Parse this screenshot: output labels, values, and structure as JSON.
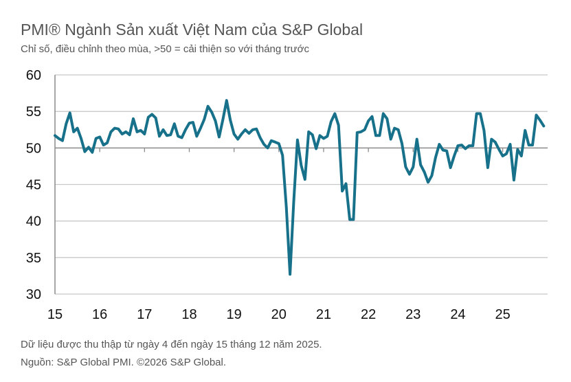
{
  "title": "PMI® Ngành Sản xuất Việt Nam của S&P Global",
  "subtitle": "Chỉ số, điều chỉnh theo mùa, >50 = cải thiện so với tháng trước",
  "footnote": "Dữ liệu được thu thập từ ngày 4 đến ngày 15 tháng 12 năm 2025.",
  "source": "Nguồn: S&P Global PMI. ©2026 S&P Global.",
  "chart_data": {
    "type": "line",
    "title": "PMI® Ngành Sản xuất Việt Nam của S&P Global",
    "xlabel": "",
    "ylabel": "",
    "ylim": [
      30,
      60
    ],
    "yticks": [
      "30",
      "35",
      "40",
      "45",
      "50",
      "55",
      "60"
    ],
    "xticks": [
      "15",
      "16",
      "17",
      "18",
      "19",
      "20",
      "21",
      "22",
      "23",
      "24",
      "25"
    ],
    "x_range": [
      "2015-01",
      "2025-12"
    ],
    "frequency": "monthly",
    "grid": true,
    "line_color": "#17718a",
    "series": [
      {
        "values": [
          51.7,
          51.3,
          51.0,
          53.3,
          54.8,
          52.2,
          52.7,
          51.3,
          49.5,
          50.1,
          49.4,
          51.3,
          51.5,
          50.4,
          50.7,
          52.2,
          52.7,
          52.6,
          51.9,
          52.2,
          51.8,
          54.0,
          52.2,
          52.4,
          51.9,
          54.2,
          54.6,
          54.1,
          51.6,
          52.5,
          51.7,
          51.8,
          53.3,
          51.6,
          51.4,
          52.5,
          53.4,
          53.5,
          51.6,
          52.7,
          53.9,
          55.7,
          54.9,
          53.7,
          51.5,
          53.9,
          56.5,
          53.8,
          51.9,
          51.2,
          51.9,
          52.5,
          52.0,
          52.5,
          52.6,
          51.4,
          50.5,
          50.0,
          51.0,
          50.8,
          50.6,
          49.0,
          41.9,
          32.7,
          42.7,
          51.1,
          47.6,
          45.7,
          52.2,
          51.8,
          49.9,
          51.7,
          51.3,
          51.6,
          53.6,
          54.7,
          53.1,
          44.1,
          45.1,
          40.2,
          40.2,
          52.1,
          52.2,
          52.5,
          53.7,
          54.3,
          51.7,
          51.7,
          54.7,
          54.0,
          51.2,
          52.7,
          52.5,
          50.6,
          47.4,
          46.4,
          47.4,
          51.2,
          47.7,
          46.7,
          45.3,
          46.2,
          48.7,
          50.5,
          49.7,
          49.6,
          47.3,
          48.9,
          50.3,
          50.4,
          49.9,
          50.3,
          50.3,
          54.7,
          54.7,
          52.4,
          47.3,
          51.2,
          50.8,
          49.8,
          48.9,
          49.2,
          50.5,
          45.6,
          49.8,
          48.9,
          52.4,
          50.4,
          50.4,
          54.5,
          53.8,
          53.0
        ]
      }
    ]
  }
}
